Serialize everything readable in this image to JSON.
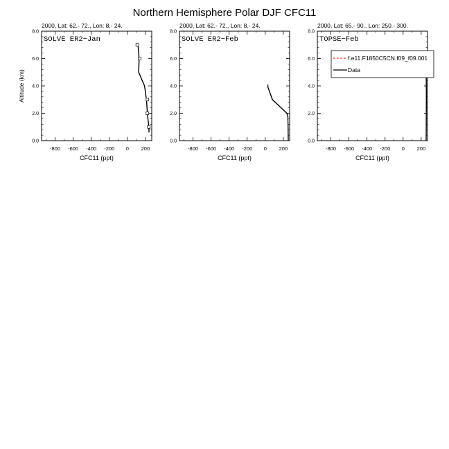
{
  "figure": {
    "title": "Northern Hemisphere Polar DJF CFC11"
  },
  "chart_data": [
    {
      "type": "line",
      "subtitle": "2000, Lat: 62.- 72., Lon: 8.- 24.",
      "campaign_label": "SOLVE ER2−Jan",
      "xlabel": "CFC11 (ppt)",
      "ylabel": "Altitude (km)",
      "xlim": [
        -950,
        270
      ],
      "ylim": [
        0,
        8
      ],
      "xticks": [
        -800,
        -600,
        -400,
        -200,
        0,
        200
      ],
      "yticks": [
        "0.0",
        "2.0",
        "4.0",
        "6.0",
        "8.0"
      ],
      "series": [
        {
          "style": "solid-black",
          "x": [
            240,
            238,
            222,
            212,
            190,
            125,
            130,
            118
          ],
          "y": [
            0.6,
            1.0,
            2.0,
            3.0,
            4.0,
            5.0,
            6.0,
            7.0
          ]
        }
      ],
      "markers": [
        {
          "x": 238,
          "y": 1.0
        },
        {
          "x": 222,
          "y": 2.0
        },
        {
          "x": 222,
          "y": 3.0
        },
        {
          "x": 135,
          "y": 6.0
        },
        {
          "x": 110,
          "y": 7.0
        }
      ]
    },
    {
      "type": "line",
      "subtitle": "2000, Lat: 62.- 72., Lon: 8.- 24.",
      "campaign_label": "SOLVE ER2−Feb",
      "xlabel": "CFC11 (ppt)",
      "ylabel": "",
      "xlim": [
        -950,
        270
      ],
      "ylim": [
        0,
        8
      ],
      "xticks": [
        -800,
        -600,
        -400,
        -200,
        0,
        200
      ],
      "yticks": [
        "0.0",
        "2.0",
        "4.0",
        "6.0",
        "8.0"
      ],
      "series": [
        {
          "style": "solid-black",
          "x": [
            255,
            253,
            250,
            240,
            80,
            30,
            28
          ],
          "y": [
            0.0,
            1.0,
            1.8,
            2.0,
            3.0,
            3.9,
            4.1
          ]
        }
      ],
      "markers": []
    },
    {
      "type": "line",
      "subtitle": "2000, Lat: 65.- 90., Lon: 250.- 300.",
      "campaign_label": "TOPSE−Feb",
      "xlabel": "CFC11 (ppt)",
      "ylabel": "",
      "xlim": [
        -950,
        270
      ],
      "ylim": [
        0,
        8
      ],
      "xticks": [
        -800,
        -600,
        -400,
        -200,
        0,
        200
      ],
      "yticks": [
        "0.0",
        "2.0",
        "4.0",
        "6.0",
        "8.0"
      ],
      "series": [
        {
          "name": "Data",
          "style": "solid-black",
          "x": [
            255,
            256,
            257,
            256,
            255
          ],
          "y": [
            0.0,
            1.5,
            3.0,
            4.5,
            6.2
          ]
        }
      ],
      "markers": [],
      "legend": {
        "placement": "top-right",
        "entries": [
          {
            "label": "f.e11.F1850C5CN.f09_f09.001",
            "color": "#e8302a",
            "dash": true
          },
          {
            "label": "Data",
            "color": "#000000",
            "dash": false
          }
        ]
      }
    }
  ]
}
